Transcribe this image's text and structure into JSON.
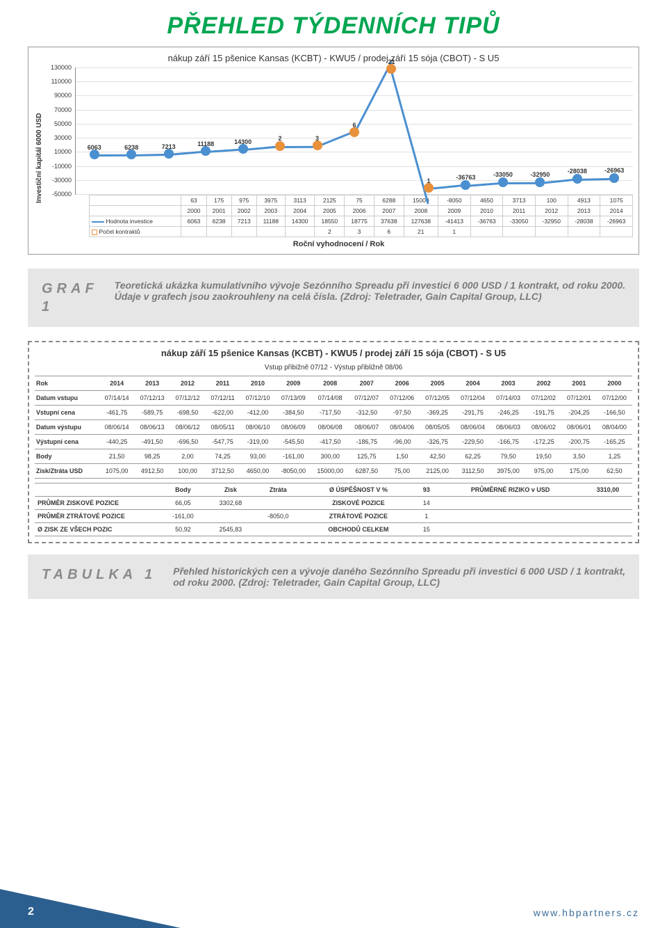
{
  "page": {
    "title": "PŘEHLED TÝDENNÍCH TIPŮ",
    "footer_num": "2",
    "footer_url": "www.hbpartners.cz"
  },
  "chart": {
    "title": "nákup září 15 pšenice Kansas (KCBT) - KWU5 / prodej září 15 sója (CBOT) - S U5",
    "y_label": "Investiční kapitál 6000 USD",
    "x_label": "Roční vyhodnocení / Rok",
    "ylim": [
      -50000,
      130000
    ],
    "y_ticks": [
      130000,
      110000,
      90000,
      70000,
      50000,
      30000,
      10000,
      -10000,
      -30000,
      -50000
    ],
    "grid_color": "#e0e0e0",
    "line_color": "#4a8fd0",
    "point_color": "#4a8fd0",
    "orange_color": "#e8913a",
    "years": [
      "2000",
      "2001",
      "2002",
      "2003",
      "2004",
      "2005",
      "2006",
      "2007",
      "2008",
      "2009",
      "2010",
      "2011",
      "2012",
      "2013",
      "2014"
    ],
    "series_investice": [
      6063,
      6238,
      7213,
      11188,
      14300,
      18550,
      18775,
      37638,
      127638,
      -41413,
      -36763,
      -33050,
      -32950,
      -28038,
      -26963
    ],
    "rocni": [
      63,
      175,
      975,
      3975,
      3113,
      2125,
      75,
      6288,
      15000,
      -8050,
      4650,
      3713,
      100,
      4913,
      1075
    ],
    "pocet": [
      "",
      "",
      "",
      "",
      "",
      "2",
      "3",
      "6",
      "21",
      "1",
      "",
      "",
      "",
      "",
      ""
    ],
    "orange_indices": [
      5,
      6,
      7,
      8,
      9
    ],
    "legend_investice": "Hodnota investice",
    "legend_pocet": "Počet kontraktů"
  },
  "caption1": {
    "label": "GRAF\n1",
    "text": "Teoretická ukázka kumulativního vývoje Sezónního Spreadu při investici 6 000 USD / 1 kontrakt, od roku 2000. Údaje v grafech jsou zaokrouhleny na celá čísla. (Zdroj: Teletrader, Gain Capital Group, LLC)"
  },
  "table": {
    "title": "nákup září 15 pšenice Kansas (KCBT) - KWU5 / prodej září 15 sója (CBOT) - S U5",
    "sub": "Vstup přibižně 07/12 - Výstup přibližně 08/06",
    "rok_label": "Rok",
    "years": [
      "2014",
      "2013",
      "2012",
      "2011",
      "2010",
      "2009",
      "2008",
      "2007",
      "2006",
      "2005",
      "2004",
      "2003",
      "2002",
      "2001",
      "2000"
    ],
    "rows": [
      {
        "label": "Datum vstupu",
        "vals": [
          "07/14/14",
          "07/12/13",
          "07/12/12",
          "07/12/11",
          "07/12/10",
          "07/13/09",
          "07/14/08",
          "07/12/07",
          "07/12/06",
          "07/12/05",
          "07/12/04",
          "07/14/03",
          "07/12/02",
          "07/12/01",
          "07/12/00"
        ]
      },
      {
        "label": "Vstupní cena",
        "vals": [
          "-461,75",
          "-589,75",
          "-698,50",
          "-622,00",
          "-412,00",
          "-384,50",
          "-717,50",
          "-312,50",
          "-97,50",
          "-369,25",
          "-291,75",
          "-246,25",
          "-191,75",
          "-204,25",
          "-166,50"
        ]
      },
      {
        "label": "Datum výstupu",
        "vals": [
          "08/06/14",
          "08/06/13",
          "08/06/12",
          "08/05/11",
          "08/06/10",
          "08/06/09",
          "08/06/08",
          "08/06/07",
          "08/04/06",
          "08/05/05",
          "08/06/04",
          "08/06/03",
          "08/06/02",
          "08/06/01",
          "08/04/00"
        ]
      },
      {
        "label": "Výstupní cena",
        "vals": [
          "-440,25",
          "-491,50",
          "-696,50",
          "-547,75",
          "-319,00",
          "-545,50",
          "-417,50",
          "-186,75",
          "-96,00",
          "-326,75",
          "-229,50",
          "-166,75",
          "-172,25",
          "-200,75",
          "-165,25"
        ]
      },
      {
        "label": "Body",
        "vals": [
          "21,50",
          "98,25",
          "2,00",
          "74,25",
          "93,00",
          "-161,00",
          "300,00",
          "125,75",
          "1,50",
          "42,50",
          "62,25",
          "79,50",
          "19,50",
          "3,50",
          "1,25"
        ]
      },
      {
        "label": "Zisk/Ztráta USD",
        "vals": [
          "1075,00",
          "4912,50",
          "100,00",
          "3712,50",
          "4650,00",
          "-8050,00",
          "15000,00",
          "6287,50",
          "75,00",
          "2125,00",
          "3112,50",
          "3975,00",
          "975,00",
          "175,00",
          "62,50"
        ]
      }
    ],
    "summary_headers": [
      "",
      "Body",
      "Zisk",
      "Ztráta",
      "Ø ÚSPĚŠNOST V %",
      "93",
      "PRŮMĚRNÉ RIZIKO v USD",
      "3310,00"
    ],
    "summary_rows": [
      [
        "PRŮMĚR ZISKOVÉ POZICE",
        "66,05",
        "3302,68",
        "",
        "ZISKOVÉ POZICE",
        "14",
        "",
        ""
      ],
      [
        "PRŮMĚR ZTRÁTOVÉ POZICE",
        "-161,00",
        "",
        "-8050,0",
        "ZTRÁTOVÉ POZICE",
        "1",
        "",
        ""
      ],
      [
        "Ø ZISK ZE VŠECH POZIC",
        "50,92",
        "2545,83",
        "",
        "OBCHODŮ CELKEM",
        "15",
        "",
        ""
      ]
    ]
  },
  "caption2": {
    "label": "TABULKA 1",
    "text": "Přehled historických cen a vývoje daného Sezónního Spreadu při investici 6 000 USD / 1 kontrakt, od roku 2000. (Zdroj: Teletrader, Gain Capital Group, LLC)"
  }
}
